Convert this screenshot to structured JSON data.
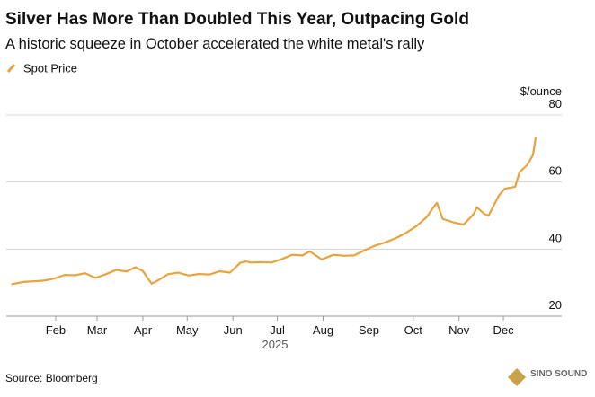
{
  "chart_data": {
    "type": "line",
    "title": "Silver Has More Than Doubled This Year, Outpacing Gold",
    "subtitle": "A historic squeeze in October accelerated the white metal's rally",
    "y_label": "$/ounce",
    "x_label": "2025",
    "source": "Source: Bloomberg",
    "watermark": "SINO SOUND",
    "x": [
      1,
      9,
      16,
      23,
      30,
      37,
      44,
      51,
      58,
      65,
      72,
      79,
      85,
      90,
      93,
      96,
      100,
      107,
      114,
      121,
      128,
      135,
      142,
      149,
      156,
      160,
      163,
      170,
      177,
      184,
      191,
      198,
      203,
      211,
      219,
      226,
      233,
      240,
      247,
      254,
      261,
      268,
      275,
      282,
      286,
      289,
      293,
      300,
      307,
      314,
      316,
      321,
      324,
      331,
      335,
      342,
      345,
      350,
      354,
      356
    ],
    "series": [
      {
        "name": "Spot Price",
        "color": "#e8a33d",
        "values": [
          29.5,
          30.2,
          30.4,
          30.6,
          31.2,
          32.3,
          32.2,
          32.8,
          31.4,
          32.5,
          33.8,
          33.3,
          34.6,
          33.5,
          31.5,
          29.7,
          30.6,
          32.5,
          33.0,
          32.1,
          32.6,
          32.4,
          33.4,
          33.0,
          35.9,
          36.3,
          36.0,
          36.1,
          36.0,
          37.0,
          38.3,
          38.1,
          39.3,
          36.9,
          38.3,
          38.0,
          38.1,
          39.6,
          41.0,
          42.0,
          43.2,
          44.8,
          46.8,
          49.5,
          52.0,
          53.8,
          49.0,
          48.0,
          47.3,
          50.5,
          52.5,
          50.5,
          50.0,
          56.0,
          58.0,
          58.6,
          63.0,
          65.0,
          68.0,
          73.5
        ]
      }
    ],
    "xlim": [
      0,
      365
    ],
    "xticks": [
      {
        "value": 31,
        "label": "Feb"
      },
      {
        "value": 59,
        "label": "Mar"
      },
      {
        "value": 90,
        "label": "Apr"
      },
      {
        "value": 120,
        "label": "May"
      },
      {
        "value": 151,
        "label": "Jun"
      },
      {
        "value": 181,
        "label": "Jul"
      },
      {
        "value": 212,
        "label": "Aug"
      },
      {
        "value": 243,
        "label": "Sep"
      },
      {
        "value": 273,
        "label": "Oct"
      },
      {
        "value": 304,
        "label": "Nov"
      },
      {
        "value": 334,
        "label": "Dec"
      }
    ],
    "ylim": [
      20,
      80
    ],
    "yticks": [
      20,
      40,
      60,
      80
    ],
    "grid": true
  }
}
